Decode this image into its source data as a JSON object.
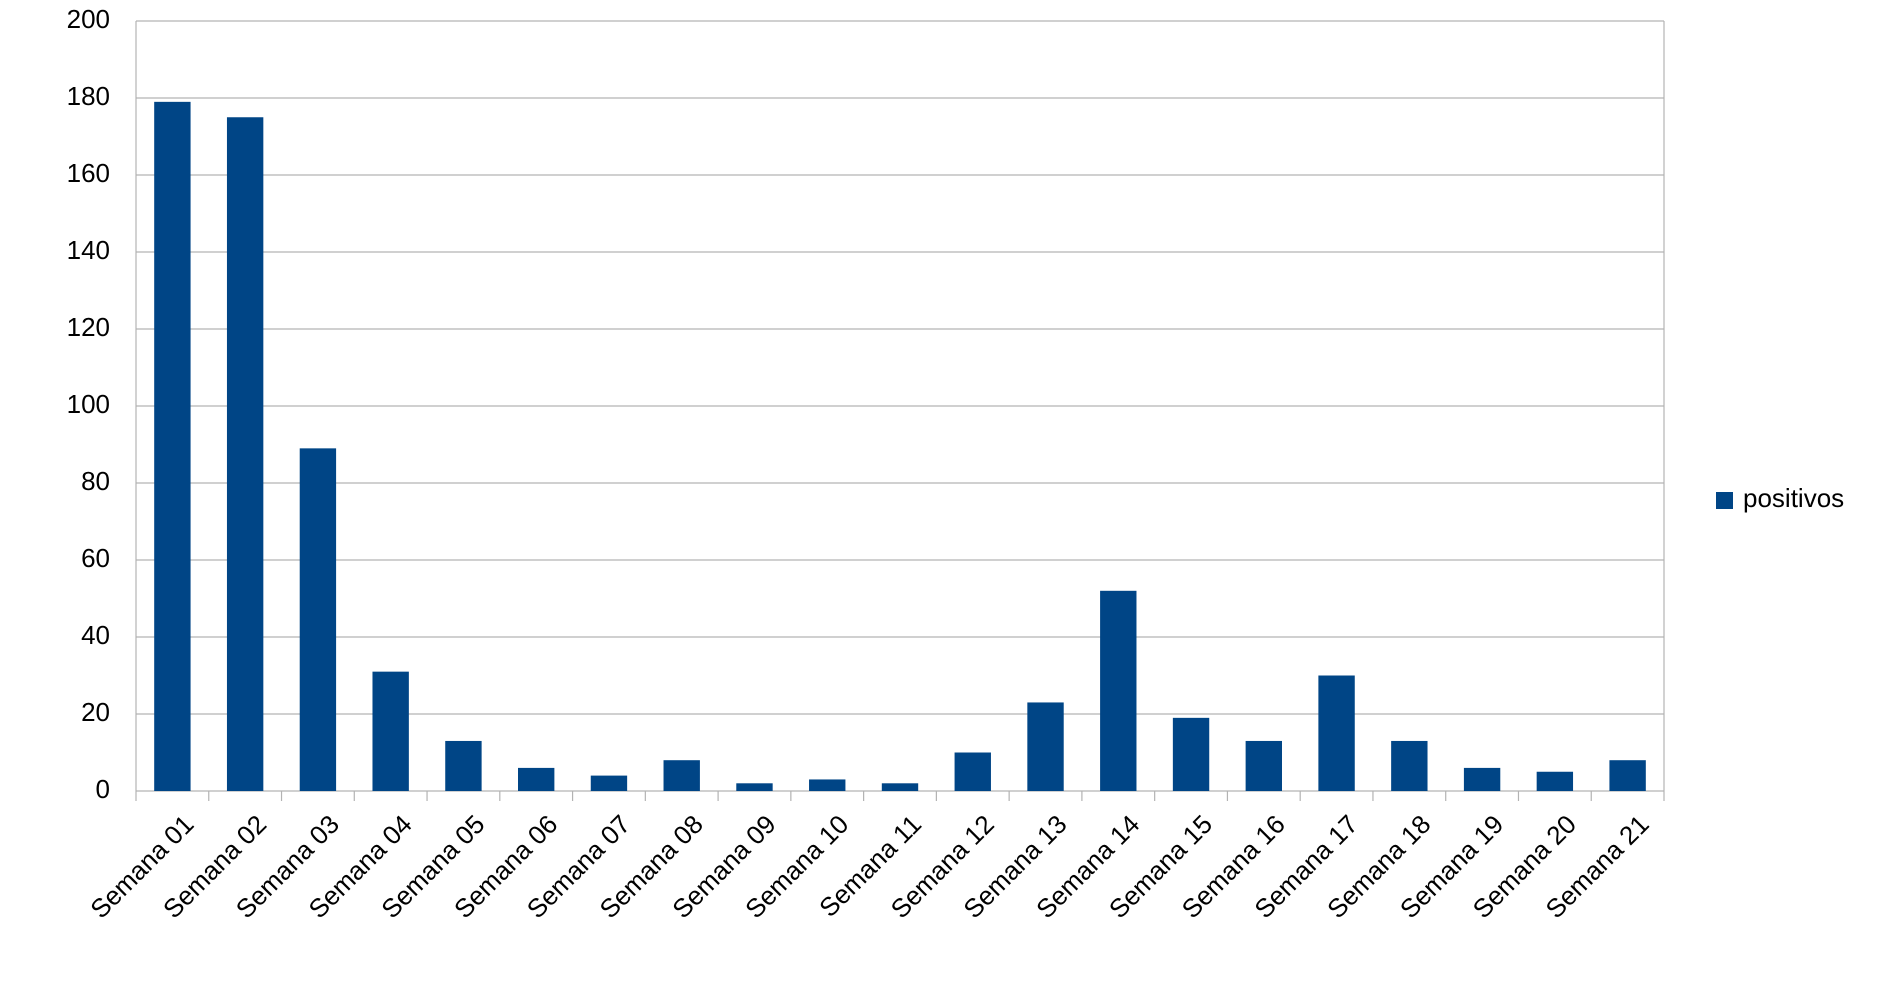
{
  "chart_data": {
    "type": "bar",
    "categories": [
      "Semana 01",
      "Semana 02",
      "Semana 03",
      "Semana 04",
      "Semana 05",
      "Semana 06",
      "Semana 07",
      "Semana 08",
      "Semana 09",
      "Semana 10",
      "Semana 11",
      "Semana 12",
      "Semana 13",
      "Semana 14",
      "Semana 15",
      "Semana 16",
      "Semana 17",
      "Semana 18",
      "Semana 19",
      "Semana 20",
      "Semana 21"
    ],
    "series": [
      {
        "name": "positivos",
        "color": "#004586",
        "values": [
          179,
          175,
          89,
          31,
          13,
          6,
          4,
          8,
          2,
          3,
          2,
          10,
          23,
          52,
          19,
          13,
          30,
          13,
          6,
          5,
          8
        ]
      }
    ],
    "ylim": [
      0,
      200
    ],
    "yticks": [
      0,
      20,
      40,
      60,
      80,
      100,
      120,
      140,
      160,
      180,
      200
    ],
    "grid": true,
    "legend": "right"
  }
}
